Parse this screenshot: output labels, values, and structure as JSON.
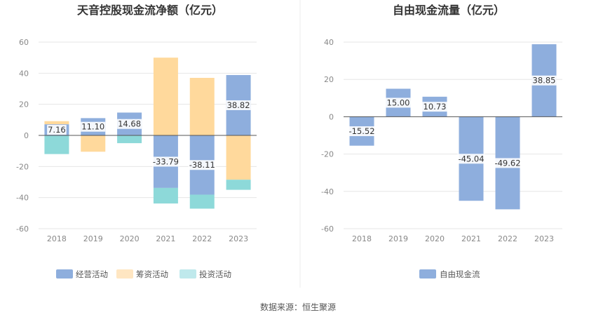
{
  "source_text": "数据来源：恒生聚源",
  "colors": {
    "operating": "#8eaedd",
    "financing": "#ffd99c",
    "investing": "#8dd9d9",
    "free_cf": "#8eaedd",
    "grid": "#e6e6e6",
    "axis": "#555555",
    "divider": "#eeeeee",
    "label_bg": "#ffffff",
    "inv_legend": "#bfe9ec",
    "fin_legend": "#ffe6c2"
  },
  "chart_data": [
    {
      "type": "bar",
      "stacked": true,
      "title": "天音控股现金流净额（亿元）",
      "categories": [
        "2018",
        "2019",
        "2020",
        "2021",
        "2022",
        "2023"
      ],
      "ylim": [
        -60,
        60
      ],
      "yticks": [
        60,
        40,
        20,
        0,
        -20,
        -40,
        -60
      ],
      "grid": true,
      "legend_position": "bottom",
      "series": [
        {
          "name": "经营活动",
          "color_key": "operating",
          "values": [
            7.16,
            11.1,
            14.68,
            -33.79,
            -38.11,
            38.82
          ],
          "labels": [
            "7.16",
            "11.10",
            "14.68",
            "-33.79",
            "-38.11",
            "38.82"
          ]
        },
        {
          "name": "筹资活动",
          "color_key": "financing",
          "values": [
            2.0,
            -10.5,
            0.0,
            50.0,
            37.0,
            -28.5
          ]
        },
        {
          "name": "投资活动",
          "color_key": "investing",
          "values": [
            -12.0,
            0.0,
            -5.0,
            -10.0,
            -9.0,
            -6.5
          ]
        }
      ]
    },
    {
      "type": "bar",
      "title": "自由现金流量（亿元）",
      "categories": [
        "2018",
        "2019",
        "2020",
        "2021",
        "2022",
        "2023"
      ],
      "ylim": [
        -60,
        40
      ],
      "yticks": [
        40,
        20,
        0,
        -20,
        -40,
        -60
      ],
      "grid": true,
      "legend_position": "bottom",
      "series": [
        {
          "name": "自由现金流",
          "color_key": "free_cf",
          "values": [
            -15.52,
            15.0,
            10.73,
            -45.04,
            -49.62,
            38.85
          ],
          "labels": [
            "-15.52",
            "15.00",
            "10.73",
            "-45.04",
            "-49.62",
            "38.85"
          ]
        }
      ]
    }
  ]
}
